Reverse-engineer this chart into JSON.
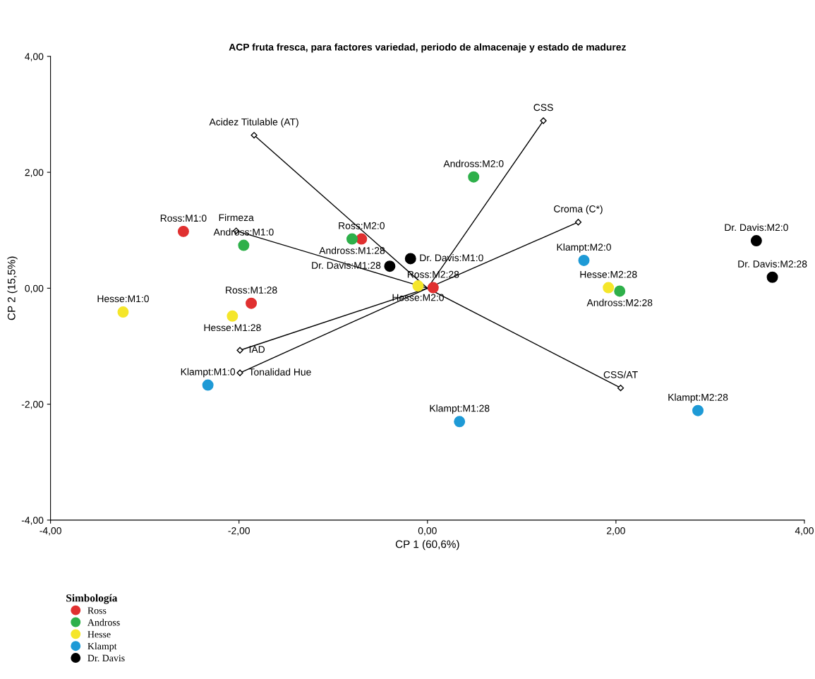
{
  "chart_data": {
    "type": "scatter",
    "title": "ACP fruta fresca, para factores variedad, periodo de almacenaje y estado de madurez",
    "xlabel": "CP 1 (60,6%)",
    "ylabel": "CP 2 (15,5%)",
    "legend_title": "Simbología",
    "legend": "bottom left",
    "grid": false,
    "marker": "circle",
    "xlim": [
      -4,
      4
    ],
    "ylim": [
      -4,
      4
    ],
    "xticks": [
      {
        "value": -4,
        "label": "-4,00"
      },
      {
        "value": -2,
        "label": "-2,00"
      },
      {
        "value": 0,
        "label": "0,00"
      },
      {
        "value": 2,
        "label": "2,00"
      },
      {
        "value": 4,
        "label": "4,00"
      }
    ],
    "yticks": [
      {
        "value": -4,
        "label": "-4,00"
      },
      {
        "value": -2,
        "label": "-2,00"
      },
      {
        "value": 0,
        "label": "0,00"
      },
      {
        "value": 2,
        "label": "2,00"
      },
      {
        "value": 4,
        "label": "4,00"
      }
    ],
    "series": [
      {
        "name": "Ross",
        "type": "scatter",
        "color": "#e03030",
        "x": [
          -2.59,
          -0.7,
          -1.87,
          0.06
        ],
        "values": [
          0.98,
          0.85,
          -0.26,
          0.01
        ]
      },
      {
        "name": "Andross",
        "type": "scatter",
        "color": "#2eb04a",
        "x": [
          -1.95,
          -0.8,
          0.49,
          2.04
        ],
        "values": [
          0.74,
          0.85,
          1.92,
          -0.05
        ]
      },
      {
        "name": "Hesse",
        "type": "scatter",
        "color": "#f5e62a",
        "x": [
          -3.23,
          -2.07,
          -0.1,
          1.92
        ],
        "values": [
          -0.41,
          -0.48,
          0.04,
          0.01
        ]
      },
      {
        "name": "Klampt",
        "type": "scatter",
        "color": "#1e9ad6",
        "x": [
          -2.33,
          0.34,
          1.66,
          2.87
        ],
        "values": [
          -1.67,
          -2.3,
          0.48,
          -2.11
        ]
      },
      {
        "name": "Dr. Davis",
        "type": "scatter",
        "color": "#000000",
        "x": [
          -0.18,
          -0.4,
          3.49,
          3.66
        ],
        "values": [
          0.51,
          0.38,
          0.82,
          0.19
        ]
      },
      {
        "type": "line",
        "color": "#000000",
        "marker": "diamond",
        "x": [
          0,
          1.23
        ],
        "values": [
          0,
          2.89
        ]
      },
      {
        "type": "line",
        "color": "#000000",
        "marker": "diamond",
        "x": [
          0,
          -1.84
        ],
        "values": [
          0,
          2.64
        ]
      },
      {
        "type": "line",
        "color": "#000000",
        "marker": "diamond",
        "x": [
          0,
          -2.03
        ],
        "values": [
          0,
          0.99
        ]
      },
      {
        "type": "line",
        "color": "#000000",
        "marker": "diamond",
        "x": [
          0,
          1.6
        ],
        "values": [
          0,
          1.14
        ]
      },
      {
        "type": "line",
        "color": "#000000",
        "marker": "diamond",
        "x": [
          0,
          -1.99
        ],
        "values": [
          0,
          -1.07
        ]
      },
      {
        "type": "line",
        "color": "#000000",
        "marker": "diamond",
        "x": [
          0,
          -1.99
        ],
        "values": [
          0,
          -1.46
        ]
      },
      {
        "type": "line",
        "color": "#000000",
        "marker": "diamond",
        "x": [
          0,
          2.05
        ],
        "values": [
          0,
          -1.72
        ]
      }
    ],
    "annotations": [
      {
        "text": "Ross:M1:0",
        "x": -2.59,
        "y": 0.98
      },
      {
        "text": "Ross:M2:0",
        "x": -0.7,
        "y": 0.85
      },
      {
        "text": "Ross:M1:28",
        "x": -1.87,
        "y": -0.26
      },
      {
        "text": "Ross:M2:28",
        "x": 0.06,
        "y": 0.01
      },
      {
        "text": "Andross:M1:0",
        "x": -1.95,
        "y": 0.74
      },
      {
        "text": "Andross:M1:28",
        "x": -0.8,
        "y": 0.85
      },
      {
        "text": "Andross:M2:0",
        "x": 0.49,
        "y": 1.92
      },
      {
        "text": "Andross:M2:28",
        "x": 2.04,
        "y": -0.05
      },
      {
        "text": "Hesse:M1:0",
        "x": -3.23,
        "y": -0.41
      },
      {
        "text": "Hesse:M1:28",
        "x": -2.07,
        "y": -0.48
      },
      {
        "text": "Hesse:M2:0",
        "x": -0.1,
        "y": 0.04
      },
      {
        "text": "Hesse:M2:28",
        "x": 1.92,
        "y": 0.01
      },
      {
        "text": "Klampt:M1:0",
        "x": -2.33,
        "y": -1.67
      },
      {
        "text": "Klampt:M1:28",
        "x": 0.34,
        "y": -2.3
      },
      {
        "text": "Klampt:M2:0",
        "x": 1.66,
        "y": 0.48
      },
      {
        "text": "Klampt:M2:28",
        "x": 2.87,
        "y": -2.11
      },
      {
        "text": "Dr. Davis:M1:0",
        "x": -0.18,
        "y": 0.51
      },
      {
        "text": "Dr. Davis:M1:28",
        "x": -0.4,
        "y": 0.38
      },
      {
        "text": "Dr. Davis:M2:0",
        "x": 3.49,
        "y": 0.82
      },
      {
        "text": "Dr. Davis:M2:28",
        "x": 3.66,
        "y": 0.19
      },
      {
        "text": "CSS",
        "x": 1.23,
        "y": 2.89
      },
      {
        "text": "Acidez Titulable (AT)",
        "x": -1.84,
        "y": 2.64
      },
      {
        "text": "Firmeza",
        "x": -2.03,
        "y": 0.99
      },
      {
        "text": "Croma (C*)",
        "x": 1.6,
        "y": 1.14
      },
      {
        "text": "IAD",
        "x": -1.99,
        "y": -1.07
      },
      {
        "text": "Tonalidad Hue",
        "x": -1.99,
        "y": -1.46
      },
      {
        "text": "CSS/AT",
        "x": 2.05,
        "y": -1.72
      }
    ]
  }
}
